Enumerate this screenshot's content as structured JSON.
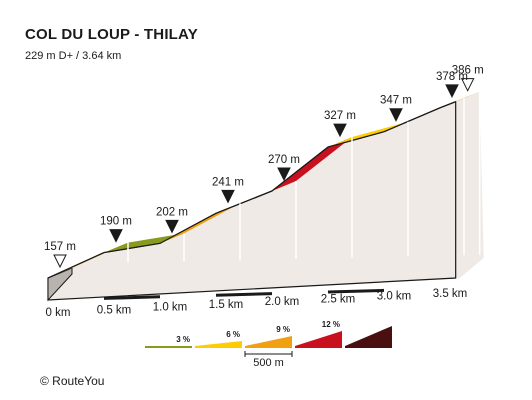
{
  "title": "COL DU LOUP - THILAY",
  "subtitle": "229 m D+ / 3.64 km",
  "credit": "©  RouteYou",
  "chart_data": {
    "type": "area",
    "title": "COL DU LOUP - THILAY",
    "subtitle": "229 m D+ / 3.64 km",
    "x_unit": "km",
    "y_unit": "m",
    "total_distance_km": 3.64,
    "total_ascent_m": 229,
    "points": [
      {
        "km": 0.0,
        "elev": 157
      },
      {
        "km": 0.5,
        "elev": 190
      },
      {
        "km": 1.0,
        "elev": 202
      },
      {
        "km": 1.5,
        "elev": 241
      },
      {
        "km": 2.0,
        "elev": 270
      },
      {
        "km": 2.5,
        "elev": 327
      },
      {
        "km": 3.0,
        "elev": 347
      },
      {
        "km": 3.5,
        "elev": 378
      },
      {
        "km": 3.64,
        "elev": 386
      }
    ],
    "elevation_labels": [
      "157 m",
      "190 m",
      "202 m",
      "241 m",
      "270 m",
      "327 m",
      "347 m",
      "378 m",
      "386 m"
    ],
    "x_ticks": [
      "0 km",
      "0.5 km",
      "1.0 km",
      "1.5 km",
      "2.0 km",
      "2.5 km",
      "3.0 km",
      "3.5 km"
    ],
    "segment_gradient_category": [
      "6 %",
      "3 %",
      "6 %",
      "6 %",
      "12 %",
      "6 %",
      "6 %",
      "6 %"
    ],
    "legend": {
      "items": [
        {
          "label": "3 %",
          "color": "#8a9a1e"
        },
        {
          "label": "6 %",
          "color": "#ffcc00"
        },
        {
          "label": "9 %",
          "color": "#f0a010"
        },
        {
          "label": "12 %",
          "color": "#c8101e"
        },
        {
          "label": "",
          "color": "#4a1010"
        }
      ],
      "scale_label": "500 m"
    },
    "colors": {
      "green": "#8a9a1e",
      "yellow": "#ffcc00",
      "orange": "#f0a010",
      "red": "#c8101e",
      "darkred": "#4a1010",
      "side": "#efeae6",
      "edge": "#1a1a1a"
    }
  }
}
